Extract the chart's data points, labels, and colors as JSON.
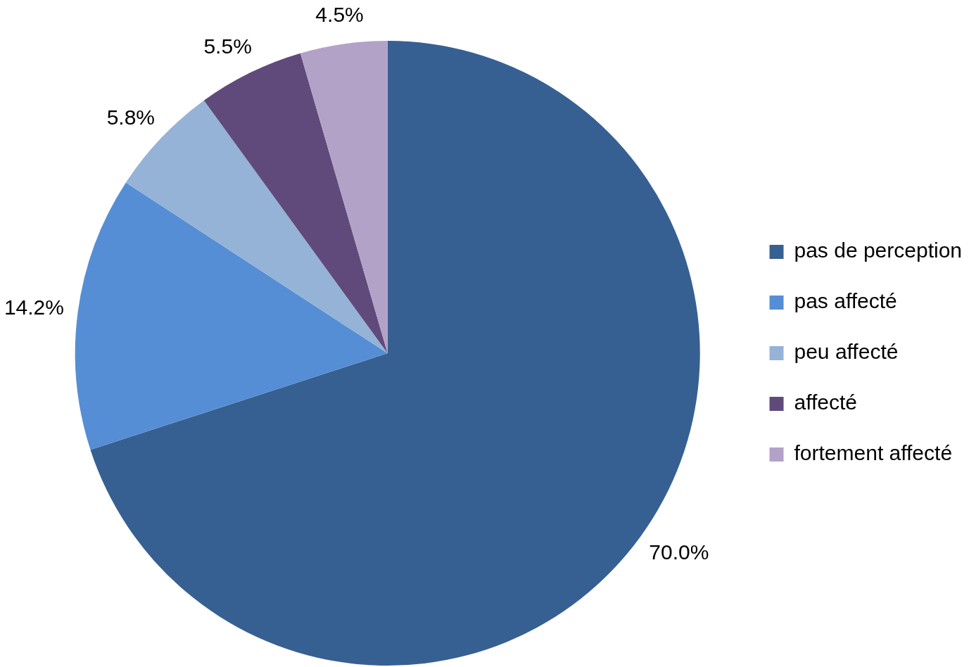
{
  "chart_data": {
    "type": "pie",
    "categories": [
      "pas de perception",
      "pas affecté",
      "peu affecté",
      "affecté",
      "fortement affecté"
    ],
    "values": [
      70.0,
      14.2,
      5.8,
      5.5,
      4.5
    ],
    "colors": [
      "#376092",
      "#558ed5",
      "#95b3d7",
      "#604a7b",
      "#b3a2c7"
    ],
    "value_labels": [
      "70.0%",
      "14.2%",
      "5.8%",
      "5.5%",
      "4.5%"
    ],
    "legend": "right"
  }
}
